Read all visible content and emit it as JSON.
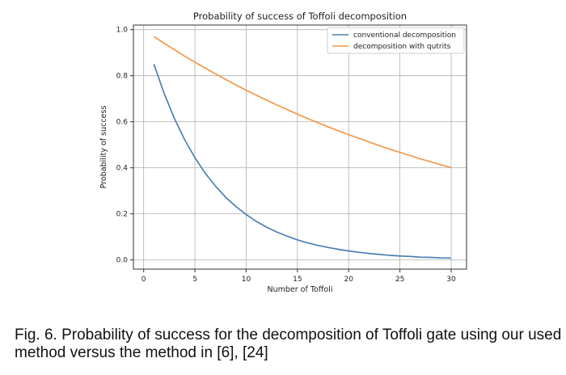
{
  "chart_data": {
    "type": "line",
    "title": "Probability of success of Toffoli decomposition",
    "xlabel": "Number of Toffoli",
    "ylabel": "Probability of success",
    "xlim": [
      -1,
      31.5
    ],
    "ylim": [
      -0.04,
      1.02
    ],
    "xticks": [
      0,
      5,
      10,
      15,
      20,
      25,
      30
    ],
    "yticks": [
      0.0,
      0.2,
      0.4,
      0.6,
      0.8,
      1.0
    ],
    "grid": true,
    "legend_position": "top-right",
    "x": [
      1,
      2,
      3,
      4,
      5,
      6,
      7,
      8,
      9,
      10,
      11,
      12,
      13,
      14,
      15,
      16,
      17,
      18,
      19,
      20,
      21,
      22,
      23,
      24,
      25,
      26,
      27,
      28,
      29,
      30
    ],
    "series": [
      {
        "name": "conventional decomposition",
        "color": "#4c7fb5",
        "values": [
          0.85,
          0.723,
          0.614,
          0.522,
          0.444,
          0.377,
          0.321,
          0.272,
          0.232,
          0.197,
          0.167,
          0.142,
          0.121,
          0.103,
          0.087,
          0.074,
          0.063,
          0.054,
          0.046,
          0.039,
          0.033,
          0.028,
          0.024,
          0.02,
          0.017,
          0.015,
          0.012,
          0.011,
          0.009,
          0.008
        ]
      },
      {
        "name": "decomposition with qutrits",
        "color": "#f2994a",
        "values": [
          0.97,
          0.941,
          0.913,
          0.885,
          0.859,
          0.833,
          0.808,
          0.784,
          0.76,
          0.737,
          0.715,
          0.694,
          0.673,
          0.653,
          0.633,
          0.614,
          0.596,
          0.578,
          0.561,
          0.544,
          0.528,
          0.512,
          0.496,
          0.481,
          0.467,
          0.453,
          0.439,
          0.426,
          0.413,
          0.401
        ]
      }
    ]
  },
  "caption": "Fig. 6. Probability of success for the decomposition of Toffoli gate using our used method versus the method in [6], [24]"
}
